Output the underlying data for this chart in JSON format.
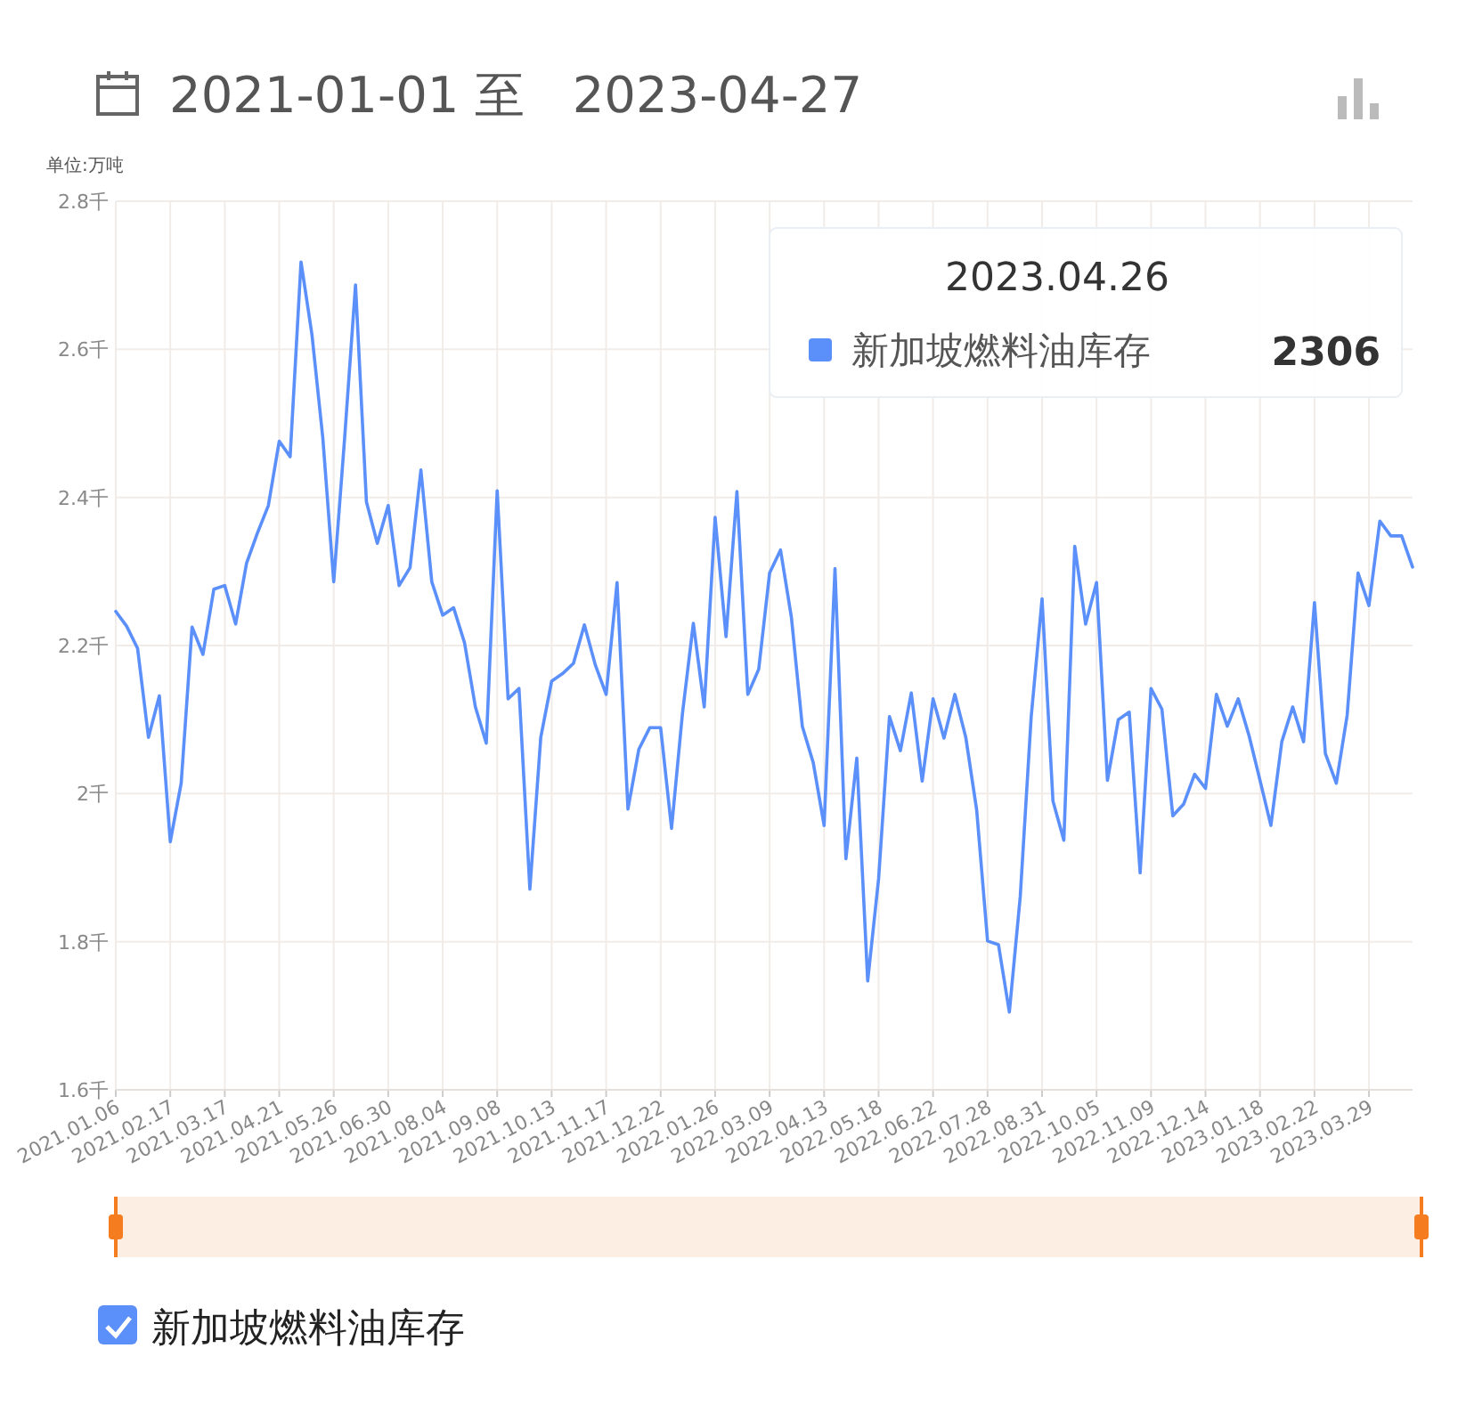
{
  "chart_data": {
    "type": "line",
    "title": "2021-01-01 至   2023-04-27",
    "ylabel": "单位:万吨",
    "categories": [
      "2021.01.06",
      null,
      null,
      null,
      null,
      "2021.02.17",
      null,
      null,
      null,
      null,
      "2021.03.17",
      null,
      null,
      null,
      null,
      "2021.04.21",
      null,
      null,
      null,
      null,
      "2021.05.26",
      null,
      null,
      null,
      null,
      "2021.06.30",
      null,
      null,
      null,
      null,
      "2021.08.04",
      null,
      null,
      null,
      null,
      "2021.09.08",
      null,
      null,
      null,
      null,
      "2021.10.13",
      null,
      null,
      null,
      null,
      "2021.11.17",
      null,
      null,
      null,
      null,
      "2021.12.22",
      null,
      null,
      null,
      null,
      "2022.01.26",
      null,
      null,
      null,
      null,
      "2022.03.09",
      null,
      null,
      null,
      null,
      "2022.04.13",
      null,
      null,
      null,
      null,
      "2022.05.18",
      null,
      null,
      null,
      null,
      "2022.06.22",
      null,
      null,
      null,
      null,
      "2022.07.28",
      null,
      null,
      null,
      null,
      "2022.08.31",
      null,
      null,
      null,
      null,
      "2022.10.05",
      null,
      null,
      null,
      null,
      "2022.11.09",
      null,
      null,
      null,
      null,
      "2022.12.14",
      null,
      null,
      null,
      null,
      "2023.01.18",
      null,
      null,
      null,
      null,
      "2023.02.22",
      null,
      null,
      null,
      null,
      "2023.03.29",
      null,
      null,
      null,
      null
    ],
    "series": [
      {
        "name": "新加坡燃料油库存",
        "color": "#5b8ff9",
        "values": [
          2.246,
          2.226,
          2.196,
          2.076,
          2.132,
          1.935,
          2.014,
          2.225,
          2.188,
          2.276,
          2.281,
          2.229,
          2.311,
          2.352,
          2.389,
          2.476,
          2.455,
          2.718,
          2.62,
          2.48,
          2.286,
          2.48,
          2.687,
          2.394,
          2.338,
          2.389,
          2.281,
          2.305,
          2.437,
          2.286,
          2.241,
          2.251,
          2.204,
          2.117,
          2.068,
          2.409,
          2.128,
          2.142,
          1.871,
          2.076,
          2.152,
          2.162,
          2.176,
          2.228,
          2.174,
          2.134,
          2.285,
          1.979,
          2.06,
          2.089,
          2.089,
          1.953,
          2.108,
          2.23,
          2.117,
          2.373,
          2.212,
          2.408,
          2.134,
          2.168,
          2.298,
          2.329,
          2.238,
          2.091,
          2.042,
          1.957,
          2.304,
          1.912,
          2.048,
          1.747,
          1.885,
          2.104,
          2.058,
          2.136,
          2.017,
          2.128,
          2.075,
          2.134,
          2.076,
          1.978,
          1.801,
          1.796,
          1.705,
          1.861,
          2.103,
          2.263,
          1.99,
          1.937,
          2.334,
          2.229,
          2.285,
          2.018,
          2.1,
          2.11,
          1.893,
          2.142,
          2.114,
          1.97,
          1.986,
          2.026,
          2.007,
          2.134,
          2.091,
          2.128,
          2.078,
          2.018,
          1.957,
          2.07,
          2.117,
          2.07,
          2.258,
          2.054,
          2.014,
          2.106,
          2.298,
          2.254,
          2.368,
          2.348,
          2.348,
          2.306
        ]
      }
    ],
    "ylim": [
      1.6,
      2.8
    ],
    "yticks": [
      {
        "value": 1.6,
        "label": "1.6千"
      },
      {
        "value": 1.8,
        "label": "1.8千"
      },
      {
        "value": 2,
        "label": "2千"
      },
      {
        "value": 2.2,
        "label": "2.2千"
      },
      {
        "value": 2.4,
        "label": "2.4千"
      },
      {
        "value": 2.6,
        "label": "2.6千"
      },
      {
        "value": 2.8,
        "label": "2.8千"
      }
    ],
    "grid": true,
    "legend": "bottom left",
    "marker": "none",
    "line_style": "solid",
    "annotations": [
      "2023.04.26",
      "新加坡燃料油库存",
      "2306"
    ]
  }
}
